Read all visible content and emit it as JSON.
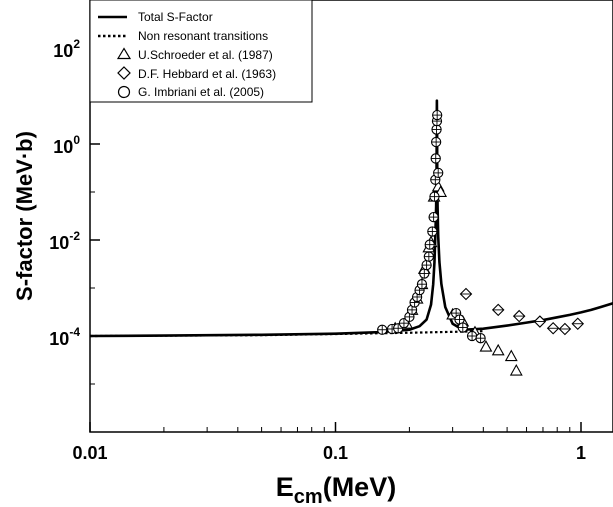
{
  "chart_data": {
    "type": "scatter",
    "title": "",
    "xlabel_main": "E",
    "xlabel_sub": "cm",
    "xlabel_unit": "(MeV)",
    "ylabel": "S-factor (MeV·b)",
    "xscale": "log",
    "yscale": "log",
    "xlim": [
      0.01,
      1.35
    ],
    "ylim": [
      1e-06,
      1000
    ],
    "x_ticks": [
      {
        "value": 0.01,
        "label": "0.01"
      },
      {
        "value": 0.1,
        "label": "0.1"
      },
      {
        "value": 1,
        "label": "1"
      }
    ],
    "y_ticks": [
      {
        "value": 0.0001,
        "base": "10",
        "exp": "-4"
      },
      {
        "value": 0.01,
        "base": "10",
        "exp": "-2"
      },
      {
        "value": 1,
        "base": "10",
        "exp": "0"
      },
      {
        "value": 100,
        "base": "10",
        "exp": "2"
      }
    ],
    "legend_position": "top-left",
    "series": [
      {
        "name": "Total S-Factor",
        "kind": "line",
        "style": "solid",
        "points": [
          [
            0.01,
            0.0001
          ],
          [
            0.02,
            0.000102
          ],
          [
            0.05,
            0.000106
          ],
          [
            0.1,
            0.000112
          ],
          [
            0.15,
            0.00012
          ],
          [
            0.2,
            0.000135
          ],
          [
            0.22,
            0.00016
          ],
          [
            0.235,
            0.00022
          ],
          [
            0.245,
            0.00045
          ],
          [
            0.25,
            0.0012
          ],
          [
            0.253,
            0.0035
          ],
          [
            0.255,
            0.012
          ],
          [
            0.257,
            0.05
          ],
          [
            0.258,
            0.3
          ],
          [
            0.2585,
            3.0
          ],
          [
            0.2588,
            8.0
          ],
          [
            0.2592,
            3.0
          ],
          [
            0.2597,
            0.3
          ],
          [
            0.2605,
            0.05
          ],
          [
            0.262,
            0.012
          ],
          [
            0.265,
            0.0035
          ],
          [
            0.27,
            0.0012
          ],
          [
            0.28,
            0.0004
          ],
          [
            0.3,
            0.00018
          ],
          [
            0.33,
            0.000135
          ],
          [
            0.4,
            0.000142
          ],
          [
            0.5,
            0.000165
          ],
          [
            0.6,
            0.00019
          ],
          [
            0.7,
            0.000215
          ],
          [
            0.8,
            0.000245
          ],
          [
            0.9,
            0.000275
          ],
          [
            1.0,
            0.00031
          ],
          [
            1.1,
            0.00035
          ],
          [
            1.2,
            0.0004
          ],
          [
            1.35,
            0.00048
          ]
        ]
      },
      {
        "name": "Non resonant  transitions",
        "kind": "line",
        "style": "dotted",
        "points": [
          [
            0.01,
            0.0001
          ],
          [
            0.05,
            0.000104
          ],
          [
            0.1,
            0.00011
          ],
          [
            0.2,
            0.000117
          ],
          [
            0.3,
            0.000122
          ],
          [
            0.4,
            0.000126
          ]
        ]
      },
      {
        "name": "U.Schroeder et al. (1987)",
        "kind": "markers",
        "marker": "triangle",
        "points": [
          [
            0.175,
            0.000145
          ],
          [
            0.195,
            0.00018
          ],
          [
            0.205,
            0.00035
          ],
          [
            0.215,
            0.0006
          ],
          [
            0.225,
            0.0012
          ],
          [
            0.23,
            0.0025
          ],
          [
            0.24,
            0.007
          ],
          [
            0.245,
            0.009
          ],
          [
            0.252,
            0.08
          ],
          [
            0.262,
            0.13
          ],
          [
            0.268,
            0.1
          ],
          [
            0.3,
            0.00028
          ],
          [
            0.33,
            0.0002
          ],
          [
            0.37,
            0.00012
          ],
          [
            0.41,
            6e-05
          ],
          [
            0.46,
            5e-05
          ],
          [
            0.52,
            3.8e-05
          ],
          [
            0.545,
            1.9e-05
          ]
        ]
      },
      {
        "name": "D.F. Hebbard et al. (1963)",
        "kind": "markers",
        "marker": "diamond",
        "points": [
          [
            0.34,
            0.00075
          ],
          [
            0.46,
            0.00035
          ],
          [
            0.56,
            0.00026
          ],
          [
            0.68,
            0.0002
          ],
          [
            0.77,
            0.000145
          ],
          [
            0.86,
            0.00014
          ],
          [
            0.97,
            0.00018
          ]
        ]
      },
      {
        "name": "G. Imbriani et al. (2005)",
        "kind": "markers",
        "marker": "circle",
        "points": [
          [
            0.155,
            0.000135
          ],
          [
            0.17,
            0.00014
          ],
          [
            0.18,
            0.000145
          ],
          [
            0.19,
            0.000185
          ],
          [
            0.2,
            0.00025
          ],
          [
            0.205,
            0.00035
          ],
          [
            0.21,
            0.0005
          ],
          [
            0.215,
            0.00065
          ],
          [
            0.22,
            0.0009
          ],
          [
            0.225,
            0.0012
          ],
          [
            0.23,
            0.002
          ],
          [
            0.235,
            0.003
          ],
          [
            0.24,
            0.0045
          ],
          [
            0.242,
            0.008
          ],
          [
            0.248,
            0.015
          ],
          [
            0.251,
            0.03
          ],
          [
            0.253,
            0.08
          ],
          [
            0.255,
            0.18
          ],
          [
            0.256,
            0.5
          ],
          [
            0.257,
            1.1
          ],
          [
            0.258,
            2.0
          ],
          [
            0.259,
            3.0
          ],
          [
            0.2595,
            4.0
          ],
          [
            0.262,
            0.25
          ],
          [
            0.31,
            0.0003
          ],
          [
            0.32,
            0.00022
          ],
          [
            0.33,
            0.00015
          ],
          [
            0.36,
            0.0001
          ],
          [
            0.39,
            9e-05
          ]
        ]
      }
    ]
  }
}
